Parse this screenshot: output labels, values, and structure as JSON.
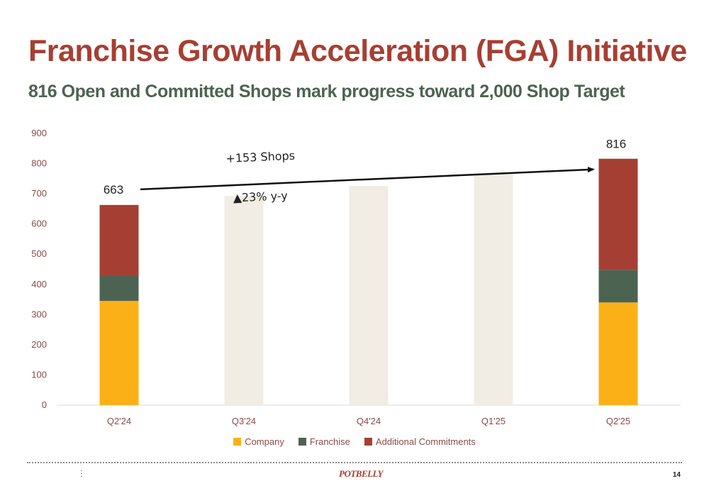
{
  "header": {
    "title": "Franchise Growth Acceleration (FGA) Initiative",
    "subtitle": "816 Open and Committed Shops mark progress toward 2,000 Shop Target"
  },
  "chart_data": {
    "type": "bar",
    "stacked": true,
    "categories": [
      "Q2'24",
      "Q3'24",
      "Q4'24",
      "Q1'25",
      "Q2'25"
    ],
    "ylim": [
      0,
      900
    ],
    "yticks": [
      0,
      100,
      200,
      300,
      400,
      500,
      600,
      700,
      800,
      900
    ],
    "grid": false,
    "legend_position": "bottom",
    "series": [
      {
        "name": "Company",
        "color": "#fcb017",
        "values": [
          345,
          null,
          null,
          null,
          340
        ]
      },
      {
        "name": "Franchise",
        "color": "#4d6351",
        "values": [
          85,
          null,
          null,
          null,
          108
        ]
      },
      {
        "name": "Additional Commitments",
        "color": "#a63f33",
        "values": [
          233,
          null,
          null,
          null,
          368
        ]
      }
    ],
    "placeholder_bars": {
      "color": "#f1ede4",
      "values": [
        null,
        693,
        726,
        766,
        null
      ]
    },
    "data_labels": [
      {
        "category": "Q2'24",
        "text": "663"
      },
      {
        "category": "Q2'25",
        "text": "816"
      }
    ],
    "annotations": [
      {
        "text": "+153 Shops"
      },
      {
        "text": "▲23% y-y"
      }
    ],
    "arrow": {
      "from": {
        "category": "Q2'24",
        "value": 663
      },
      "to": {
        "category": "Q2'25",
        "value": 816
      }
    }
  },
  "footer": {
    "logo": "POTBELLY",
    "page_number": "14"
  }
}
